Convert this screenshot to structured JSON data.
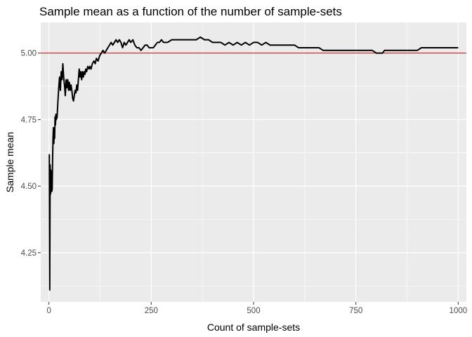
{
  "chart_data": {
    "type": "line",
    "title": "Sample mean as a function of the number of sample-sets",
    "xlabel": "Count of sample-sets",
    "ylabel": "Sample mean",
    "xlim": [
      -20,
      1020
    ],
    "ylim": [
      4.065,
      5.115
    ],
    "x_ticks": [
      0,
      250,
      500,
      750,
      1000
    ],
    "x_tick_labels": [
      "0",
      "250",
      "500",
      "750",
      "1000"
    ],
    "y_ticks": [
      4.25,
      4.5,
      4.75,
      5.0
    ],
    "y_tick_labels": [
      "4.25",
      "4.50",
      "4.75",
      "5.00"
    ],
    "grid": true,
    "legend": "none",
    "reference_line": {
      "y": 5.0,
      "color": "#cc0000"
    },
    "series": [
      {
        "color": "#000000",
        "points": [
          [
            1,
            4.62
          ],
          [
            2,
            4.11
          ],
          [
            3,
            4.58
          ],
          [
            4,
            4.47
          ],
          [
            5,
            4.56
          ],
          [
            6,
            4.49
          ],
          [
            7,
            4.48
          ],
          [
            8,
            4.49
          ],
          [
            9,
            4.6
          ],
          [
            10,
            4.68
          ],
          [
            11,
            4.72
          ],
          [
            12,
            4.66
          ],
          [
            13,
            4.7
          ],
          [
            14,
            4.68
          ],
          [
            15,
            4.76
          ],
          [
            16,
            4.73
          ],
          [
            17,
            4.77
          ],
          [
            18,
            4.75
          ],
          [
            20,
            4.76
          ],
          [
            22,
            4.82
          ],
          [
            24,
            4.87
          ],
          [
            26,
            4.91
          ],
          [
            28,
            4.86
          ],
          [
            30,
            4.93
          ],
          [
            32,
            4.9
          ],
          [
            34,
            4.96
          ],
          [
            36,
            4.91
          ],
          [
            38,
            4.88
          ],
          [
            40,
            4.84
          ],
          [
            42,
            4.9
          ],
          [
            44,
            4.87
          ],
          [
            46,
            4.9
          ],
          [
            48,
            4.86
          ],
          [
            50,
            4.89
          ],
          [
            52,
            4.86
          ],
          [
            54,
            4.88
          ],
          [
            56,
            4.86
          ],
          [
            58,
            4.83
          ],
          [
            60,
            4.82
          ],
          [
            62,
            4.84
          ],
          [
            64,
            4.86
          ],
          [
            66,
            4.85
          ],
          [
            68,
            4.88
          ],
          [
            70,
            4.86
          ],
          [
            72,
            4.9
          ],
          [
            74,
            4.94
          ],
          [
            76,
            4.91
          ],
          [
            78,
            4.93
          ],
          [
            80,
            4.9
          ],
          [
            82,
            4.93
          ],
          [
            84,
            4.91
          ],
          [
            86,
            4.93
          ],
          [
            88,
            4.92
          ],
          [
            90,
            4.94
          ],
          [
            92,
            4.93
          ],
          [
            95,
            4.95
          ],
          [
            98,
            4.94
          ],
          [
            100,
            4.95
          ],
          [
            103,
            4.94
          ],
          [
            106,
            4.96
          ],
          [
            110,
            4.97
          ],
          [
            113,
            4.96
          ],
          [
            116,
            4.98
          ],
          [
            120,
            4.97
          ],
          [
            124,
            4.99
          ],
          [
            128,
            5.0
          ],
          [
            132,
            5.01
          ],
          [
            136,
            5.0
          ],
          [
            140,
            5.01
          ],
          [
            144,
            5.02
          ],
          [
            148,
            5.03
          ],
          [
            152,
            5.04
          ],
          [
            156,
            5.03
          ],
          [
            160,
            5.04
          ],
          [
            164,
            5.05
          ],
          [
            168,
            5.04
          ],
          [
            172,
            5.05
          ],
          [
            176,
            5.04
          ],
          [
            180,
            5.02
          ],
          [
            184,
            5.04
          ],
          [
            188,
            5.03
          ],
          [
            192,
            5.04
          ],
          [
            196,
            5.05
          ],
          [
            200,
            5.04
          ],
          [
            205,
            5.05
          ],
          [
            210,
            5.03
          ],
          [
            215,
            5.02
          ],
          [
            220,
            5.02
          ],
          [
            225,
            5.01
          ],
          [
            230,
            5.02
          ],
          [
            235,
            5.03
          ],
          [
            240,
            5.03
          ],
          [
            245,
            5.02
          ],
          [
            250,
            5.02
          ],
          [
            255,
            5.02
          ],
          [
            260,
            5.03
          ],
          [
            265,
            5.04
          ],
          [
            270,
            5.04
          ],
          [
            275,
            5.05
          ],
          [
            280,
            5.04
          ],
          [
            290,
            5.04
          ],
          [
            300,
            5.05
          ],
          [
            310,
            5.05
          ],
          [
            320,
            5.05
          ],
          [
            330,
            5.05
          ],
          [
            340,
            5.05
          ],
          [
            350,
            5.05
          ],
          [
            360,
            5.05
          ],
          [
            370,
            5.06
          ],
          [
            380,
            5.05
          ],
          [
            390,
            5.05
          ],
          [
            400,
            5.04
          ],
          [
            410,
            5.04
          ],
          [
            420,
            5.04
          ],
          [
            430,
            5.03
          ],
          [
            440,
            5.04
          ],
          [
            450,
            5.03
          ],
          [
            460,
            5.04
          ],
          [
            470,
            5.03
          ],
          [
            480,
            5.04
          ],
          [
            490,
            5.03
          ],
          [
            500,
            5.04
          ],
          [
            510,
            5.04
          ],
          [
            520,
            5.03
          ],
          [
            530,
            5.04
          ],
          [
            540,
            5.03
          ],
          [
            550,
            5.03
          ],
          [
            560,
            5.03
          ],
          [
            570,
            5.03
          ],
          [
            580,
            5.03
          ],
          [
            590,
            5.03
          ],
          [
            600,
            5.03
          ],
          [
            610,
            5.02
          ],
          [
            620,
            5.02
          ],
          [
            630,
            5.02
          ],
          [
            640,
            5.02
          ],
          [
            650,
            5.02
          ],
          [
            660,
            5.02
          ],
          [
            670,
            5.01
          ],
          [
            680,
            5.01
          ],
          [
            690,
            5.01
          ],
          [
            700,
            5.01
          ],
          [
            710,
            5.01
          ],
          [
            720,
            5.01
          ],
          [
            730,
            5.01
          ],
          [
            740,
            5.01
          ],
          [
            750,
            5.01
          ],
          [
            760,
            5.01
          ],
          [
            770,
            5.01
          ],
          [
            780,
            5.01
          ],
          [
            790,
            5.01
          ],
          [
            800,
            5.0
          ],
          [
            810,
            5.0
          ],
          [
            815,
            5.0
          ],
          [
            820,
            5.01
          ],
          [
            830,
            5.01
          ],
          [
            840,
            5.01
          ],
          [
            850,
            5.01
          ],
          [
            860,
            5.01
          ],
          [
            870,
            5.01
          ],
          [
            880,
            5.01
          ],
          [
            890,
            5.01
          ],
          [
            900,
            5.01
          ],
          [
            910,
            5.02
          ],
          [
            920,
            5.02
          ],
          [
            930,
            5.02
          ],
          [
            940,
            5.02
          ],
          [
            950,
            5.02
          ],
          [
            960,
            5.02
          ],
          [
            970,
            5.02
          ],
          [
            980,
            5.02
          ],
          [
            990,
            5.02
          ],
          [
            1000,
            5.02
          ]
        ]
      }
    ]
  }
}
